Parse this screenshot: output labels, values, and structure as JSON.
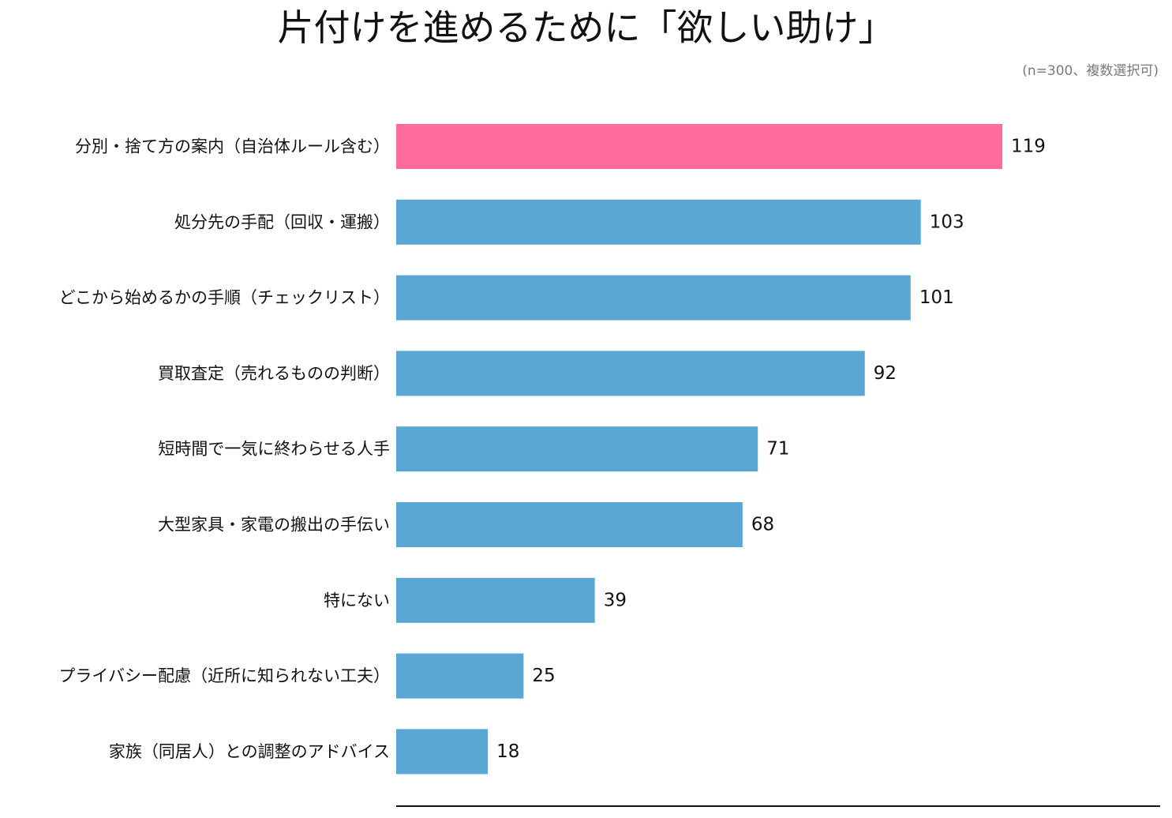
{
  "chart_data": {
    "type": "bar",
    "orientation": "horizontal",
    "title": "片付けを進めるために「欲しい助け」",
    "note": "(n=300、複数選択可)",
    "xlabel": "",
    "ylabel": "",
    "xlim": [
      0,
      119
    ],
    "grid": false,
    "legend": "none",
    "categories": [
      "分別・捨て方の案内（自治体ルール含む）",
      "処分先の手配（回収・運搬）",
      "どこから始めるかの手順（チェックリスト）",
      "買取査定（売れるものの判断）",
      "短時間で一気に終わらせる人手",
      "大型家具・家電の搬出の手伝い",
      "特にない",
      "プライバシー配慮（近所に知られない工夫）",
      "家族（同居人）との調整のアドバイス"
    ],
    "values": [
      119,
      103,
      101,
      92,
      71,
      68,
      39,
      25,
      18
    ],
    "highlight_index": 0,
    "colors": {
      "highlight": "#ff6b9a",
      "bar": "#5ba7d3",
      "axis": "#111111"
    }
  }
}
